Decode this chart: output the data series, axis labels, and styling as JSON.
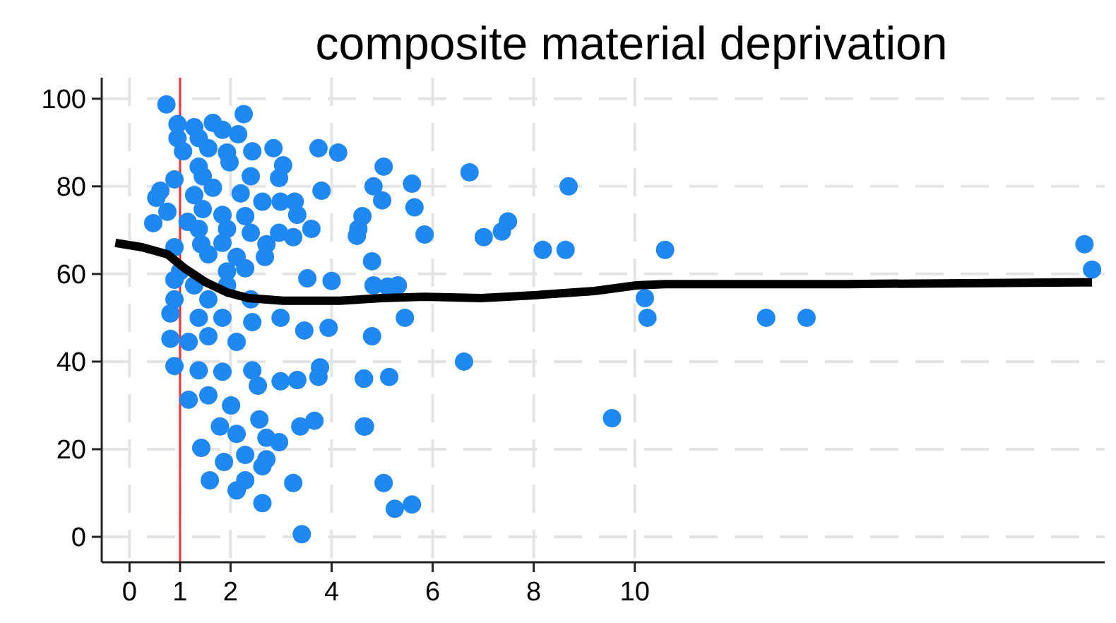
{
  "chart_data": {
    "type": "scatter",
    "title": "composite material deprivation",
    "xlim": [
      -0.55,
      19.3
    ],
    "xticks": [
      0,
      1,
      2,
      4,
      6,
      8,
      10
    ],
    "ylim": [
      -5.8,
      104.8
    ],
    "yticks": [
      0,
      20,
      40,
      60,
      80,
      100
    ],
    "grid": true,
    "marker": "circle",
    "ref_lines": [
      {
        "axis": "x",
        "value": 1,
        "color": "#ff3030"
      }
    ],
    "series": [
      {
        "color": "#1f88f2",
        "x": [
          18.9,
          19.05,
          12.6,
          13.4,
          10.2,
          10.25,
          10.6,
          9.55,
          5.03,
          4.83,
          5.59,
          5.0,
          4.61,
          4.5,
          5.64,
          5.84,
          6.73,
          7.01,
          7.37,
          7.49,
          8.18,
          8.63,
          8.69,
          4.8,
          4.83,
          5.11,
          5.31,
          5.45,
          4.8,
          4.64,
          5.14,
          6.62,
          4.66,
          5.03,
          5.25,
          5.59,
          0.73,
          2.26,
          0.95,
          1.65,
          1.28,
          1.84,
          0.95,
          1.37,
          2.15,
          1.06,
          1.56,
          1.93,
          2.43,
          2.85,
          3.74,
          4.13,
          3.04,
          1.37,
          1.98,
          2.96,
          2.4,
          1.45,
          0.89,
          3.8,
          0.61,
          1.28,
          1.65,
          2.2,
          0.53,
          2.63,
          2.99,
          3.27,
          1.84,
          0.75,
          2.29,
          3.32,
          1.45,
          1.15,
          0.47,
          2.96,
          3.24,
          3.6,
          1.93,
          1.37,
          2.4,
          4.53,
          2.71,
          1.42,
          1.84,
          0.89,
          2.68,
          2.12,
          1.56,
          2.29,
          1.0,
          1.93,
          3.52,
          4.0,
          0.89,
          1.28,
          1.93,
          0.89,
          1.56,
          2.4,
          0.81,
          1.37,
          1.84,
          2.99,
          2.43,
          3.46,
          3.94,
          0.81,
          1.17,
          1.56,
          2.12,
          0.89,
          1.37,
          1.84,
          2.43,
          2.99,
          3.32,
          3.77,
          3.74,
          4.64,
          1.17,
          1.56,
          2.01,
          2.54,
          2.57,
          1.79,
          2.12,
          2.71,
          2.96,
          3.38,
          3.66,
          4.64,
          1.42,
          2.29,
          1.87,
          2.63,
          2.71,
          1.59,
          2.29,
          2.12,
          3.24,
          2.63,
          3.41
        ],
        "values": [
          66.8,
          61,
          50,
          50,
          54.5,
          50,
          65.5,
          27.1,
          84.5,
          80,
          80.6,
          76.8,
          73.2,
          68.7,
          75.2,
          69,
          83.2,
          68.4,
          69.7,
          72,
          65.5,
          65.5,
          80,
          62.9,
          57.4,
          57.1,
          57.4,
          50,
          45.8,
          36.1,
          36.5,
          40,
          25.2,
          12.3,
          6.4,
          7.4,
          98.7,
          96.5,
          94.2,
          94.5,
          93.5,
          92.9,
          91,
          91,
          91.9,
          88,
          88.7,
          87.7,
          88,
          88.7,
          88.7,
          87.7,
          84.8,
          84.5,
          85.5,
          81.9,
          82.3,
          82.3,
          81.6,
          79,
          79,
          78,
          79.7,
          78.4,
          77.4,
          76.5,
          76.5,
          76.5,
          73.5,
          74.2,
          73.2,
          73.5,
          74.8,
          71.9,
          71.6,
          69.4,
          68.4,
          70.3,
          70.3,
          70.3,
          69.4,
          70.3,
          66.8,
          66.8,
          67.1,
          66.1,
          63.9,
          63.9,
          64.5,
          61.3,
          60.6,
          60.6,
          59,
          58.4,
          58.7,
          57.4,
          57.4,
          54.2,
          54.2,
          54.2,
          51,
          50,
          50,
          50,
          49,
          47.1,
          47.7,
          45.2,
          44.5,
          45.8,
          44.5,
          39,
          38,
          37.7,
          38,
          35.5,
          35.8,
          38.7,
          36.5,
          36.1,
          31.3,
          32.3,
          30,
          34.5,
          26.8,
          25.2,
          23.5,
          22.6,
          21.6,
          25.2,
          26.5,
          25.2,
          20.3,
          18.7,
          17.1,
          16.1,
          17.7,
          12.9,
          12.9,
          10.6,
          12.3,
          7.7,
          0.6
        ]
      },
      {
        "type": "line",
        "color": "#000000",
        "marker": "none",
        "x": [
          -0.28,
          0.25,
          0.75,
          1.09,
          1.51,
          1.93,
          2.35,
          3.04,
          4.16,
          4.99,
          5.84,
          6.96,
          8.07,
          9.2,
          10.03,
          10.6,
          14.2,
          19.05
        ],
        "values": [
          67.1,
          66.1,
          64.5,
          61.3,
          58.1,
          55.8,
          54.5,
          53.9,
          53.9,
          54.5,
          54.8,
          54.5,
          55.2,
          56.1,
          57.4,
          57.7,
          57.7,
          58.1
        ]
      }
    ]
  }
}
